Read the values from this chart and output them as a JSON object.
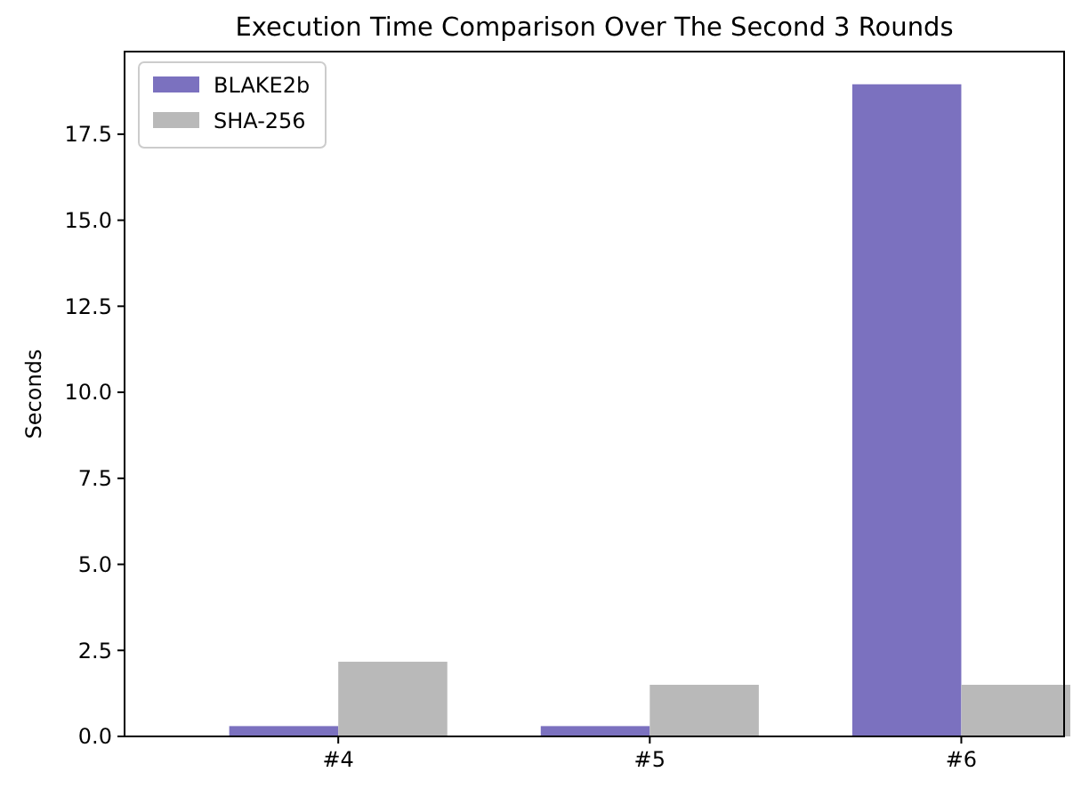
{
  "chart_data": {
    "type": "bar",
    "title": "Execution Time Comparison Over The Second 3 Rounds",
    "ylabel": "Seconds",
    "categories": [
      "#4",
      "#5",
      "#6"
    ],
    "series": [
      {
        "name": "BLAKE2b",
        "color": "#7b71bf",
        "values": [
          0.3,
          0.3,
          18.95
        ]
      },
      {
        "name": "SHA-256",
        "color": "#b9b9b9",
        "values": [
          2.17,
          1.5,
          1.5
        ]
      }
    ],
    "ylim": [
      0,
      19.9
    ],
    "yticks": [
      {
        "value": 0,
        "label": "0.0"
      },
      {
        "value": 2.5,
        "label": "2.5"
      },
      {
        "value": 5,
        "label": "5.0"
      },
      {
        "value": 7.5,
        "label": "7.5"
      },
      {
        "value": 10,
        "label": "10.0"
      },
      {
        "value": 12.5,
        "label": "12.5"
      },
      {
        "value": 15,
        "label": "15.0"
      },
      {
        "value": 17.5,
        "label": "17.5"
      }
    ],
    "legend": "top left"
  }
}
